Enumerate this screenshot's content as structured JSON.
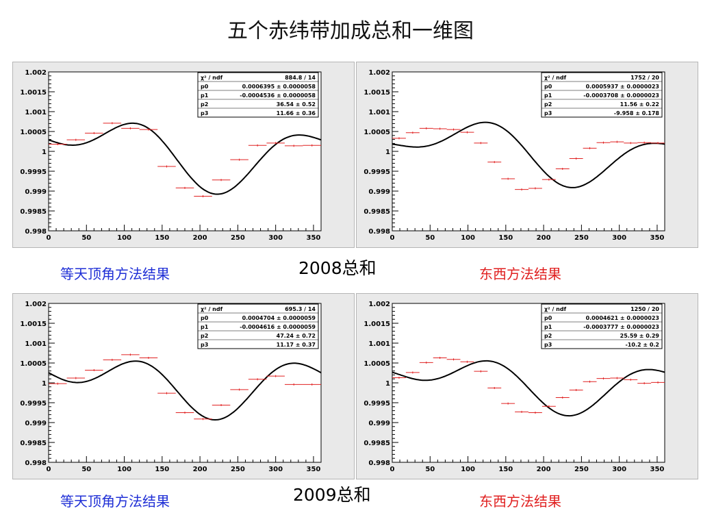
{
  "title": "五个赤纬带加成总和一维图",
  "rows": [
    {
      "year_label": "2008总和",
      "left_label": "等天顶角方法结果",
      "right_label": "东西方法结果"
    },
    {
      "year_label": "2009总和",
      "left_label": "等天顶角方法结果",
      "right_label": "东西方法结果"
    }
  ],
  "colors": {
    "curve": "#000000",
    "points": "#e02020",
    "method_blue": "#1f2fd6",
    "method_red": "#e02020"
  },
  "chart_data": [
    {
      "type": "line",
      "xlim": [
        0,
        360
      ],
      "ylim": [
        0.998,
        1.002
      ],
      "xticks": [
        "0",
        "50",
        "100",
        "150",
        "200",
        "250",
        "300",
        "350"
      ],
      "yticks": [
        "0.998",
        "0.9985",
        "0.999",
        "0.9995",
        "1",
        "1.0005",
        "1.001",
        "1.0015",
        "1.002"
      ],
      "fit": {
        "p0": 0.0006395,
        "p1": -0.0004536,
        "p2": 36.54,
        "p3": 11.66
      },
      "stats": [
        {
          "label": "χ² / ndf",
          "value": "884.8 / 14"
        },
        {
          "label": "p0",
          "value": "0.0006395 ± 0.0000058"
        },
        {
          "label": "p1",
          "value": "-0.0004536 ± 0.0000058"
        },
        {
          "label": "p2",
          "value": "36.54 ± 0.52"
        },
        {
          "label": "p3",
          "value": "11.66 ± 0.36"
        }
      ],
      "points": [
        {
          "x": 12,
          "y": 1.00018
        },
        {
          "x": 36,
          "y": 1.00029
        },
        {
          "x": 60,
          "y": 1.00046
        },
        {
          "x": 84,
          "y": 1.00071
        },
        {
          "x": 108,
          "y": 1.00058
        },
        {
          "x": 132,
          "y": 1.00055
        },
        {
          "x": 156,
          "y": 0.99962
        },
        {
          "x": 180,
          "y": 0.99908
        },
        {
          "x": 204,
          "y": 0.99887
        },
        {
          "x": 228,
          "y": 0.99928
        },
        {
          "x": 252,
          "y": 0.99979
        },
        {
          "x": 276,
          "y": 1.00015
        },
        {
          "x": 300,
          "y": 1.00021
        },
        {
          "x": 324,
          "y": 1.00014
        },
        {
          "x": 348,
          "y": 1.00015
        }
      ]
    },
    {
      "type": "line",
      "xlim": [
        0,
        360
      ],
      "ylim": [
        0.998,
        1.002
      ],
      "xticks": [
        "0",
        "50",
        "100",
        "150",
        "200",
        "250",
        "300",
        "350"
      ],
      "yticks": [
        "0.998",
        "0.9985",
        "0.999",
        "0.9995",
        "1",
        "1.0005",
        "1.001",
        "1.0015",
        "1.002"
      ],
      "fit": {
        "p0": 0.0005937,
        "p1": -0.0003708,
        "p2": 11.56,
        "p3": -9.958
      },
      "stats": [
        {
          "label": "χ² / ndf",
          "value": "1752 / 20"
        },
        {
          "label": "p0",
          "value": "0.0005937 ± 0.0000023"
        },
        {
          "label": "p1",
          "value": "-0.0003708 ± 0.0000023"
        },
        {
          "label": "p2",
          "value": "11.56 ± 0.22"
        },
        {
          "label": "p3",
          "value": "-9.958 ± 0.178"
        }
      ],
      "points": [
        {
          "x": 9,
          "y": 1.00033
        },
        {
          "x": 27,
          "y": 1.00047
        },
        {
          "x": 45,
          "y": 1.00058
        },
        {
          "x": 63,
          "y": 1.00057
        },
        {
          "x": 81,
          "y": 1.00055
        },
        {
          "x": 99,
          "y": 1.00048
        },
        {
          "x": 117,
          "y": 1.00021
        },
        {
          "x": 135,
          "y": 0.99973
        },
        {
          "x": 153,
          "y": 0.99931
        },
        {
          "x": 171,
          "y": 0.99904
        },
        {
          "x": 189,
          "y": 0.99907
        },
        {
          "x": 207,
          "y": 0.99929
        },
        {
          "x": 225,
          "y": 0.99956
        },
        {
          "x": 243,
          "y": 0.99982
        },
        {
          "x": 261,
          "y": 1.00008
        },
        {
          "x": 279,
          "y": 1.00022
        },
        {
          "x": 297,
          "y": 1.00024
        },
        {
          "x": 315,
          "y": 1.00021
        },
        {
          "x": 333,
          "y": 1.00022
        },
        {
          "x": 351,
          "y": 1.00021
        }
      ]
    },
    {
      "type": "line",
      "xlim": [
        0,
        360
      ],
      "ylim": [
        0.998,
        1.002
      ],
      "xticks": [
        "0",
        "50",
        "100",
        "150",
        "200",
        "250",
        "300",
        "350"
      ],
      "yticks": [
        "0.998",
        "0.9985",
        "0.999",
        "0.9995",
        "1",
        "1.0005",
        "1.001",
        "1.0015",
        "1.002"
      ],
      "fit": {
        "p0": 0.0004704,
        "p1": -0.0004616,
        "p2": 47.24,
        "p3": 11.17
      },
      "stats": [
        {
          "label": "χ² / ndf",
          "value": "695.3 / 14"
        },
        {
          "label": "p0",
          "value": "0.0004704 ± 0.0000059"
        },
        {
          "label": "p1",
          "value": "-0.0004616 ± 0.0000059"
        },
        {
          "label": "p2",
          "value": "47.24 ± 0.72"
        },
        {
          "label": "p3",
          "value": "11.17 ± 0.37"
        }
      ],
      "points": [
        {
          "x": 12,
          "y": 0.99998
        },
        {
          "x": 36,
          "y": 1.00012
        },
        {
          "x": 60,
          "y": 1.00032
        },
        {
          "x": 84,
          "y": 1.00058
        },
        {
          "x": 108,
          "y": 1.00071
        },
        {
          "x": 132,
          "y": 1.00063
        },
        {
          "x": 156,
          "y": 0.99974
        },
        {
          "x": 180,
          "y": 0.99925
        },
        {
          "x": 204,
          "y": 0.99909
        },
        {
          "x": 228,
          "y": 0.99944
        },
        {
          "x": 252,
          "y": 0.99983
        },
        {
          "x": 276,
          "y": 1.00009
        },
        {
          "x": 300,
          "y": 1.00017
        },
        {
          "x": 324,
          "y": 0.99996
        },
        {
          "x": 348,
          "y": 0.99996
        }
      ]
    },
    {
      "type": "line",
      "xlim": [
        0,
        360
      ],
      "ylim": [
        0.998,
        1.002
      ],
      "xticks": [
        "0",
        "50",
        "100",
        "150",
        "200",
        "250",
        "300",
        "350"
      ],
      "yticks": [
        "0.998",
        "0.9985",
        "0.999",
        "0.9995",
        "1",
        "1.0005",
        "1.001",
        "1.0015",
        "1.002"
      ],
      "fit": {
        "p0": 0.0004621,
        "p1": -0.0003777,
        "p2": 25.59,
        "p3": -10.2
      },
      "stats": [
        {
          "label": "χ² / ndf",
          "value": "1250 / 20"
        },
        {
          "label": "p0",
          "value": "0.0004621 ± 0.0000023"
        },
        {
          "label": "p1",
          "value": "-0.0003777 ± 0.0000023"
        },
        {
          "label": "p2",
          "value": "25.59 ± 0.29"
        },
        {
          "label": "p3",
          "value": "-10.2 ± 0.2"
        }
      ],
      "points": [
        {
          "x": 9,
          "y": 1.00013
        },
        {
          "x": 27,
          "y": 1.00026
        },
        {
          "x": 45,
          "y": 1.00051
        },
        {
          "x": 63,
          "y": 1.00063
        },
        {
          "x": 81,
          "y": 1.00059
        },
        {
          "x": 99,
          "y": 1.00053
        },
        {
          "x": 117,
          "y": 1.00029
        },
        {
          "x": 135,
          "y": 0.99987
        },
        {
          "x": 153,
          "y": 0.99948
        },
        {
          "x": 171,
          "y": 0.99927
        },
        {
          "x": 189,
          "y": 0.99925
        },
        {
          "x": 207,
          "y": 0.99941
        },
        {
          "x": 225,
          "y": 0.99963
        },
        {
          "x": 243,
          "y": 0.99982
        },
        {
          "x": 261,
          "y": 1.00003
        },
        {
          "x": 279,
          "y": 1.00011
        },
        {
          "x": 297,
          "y": 1.00012
        },
        {
          "x": 315,
          "y": 1.00008
        },
        {
          "x": 333,
          "y": 0.99999
        },
        {
          "x": 351,
          "y": 1.00001
        }
      ]
    }
  ]
}
